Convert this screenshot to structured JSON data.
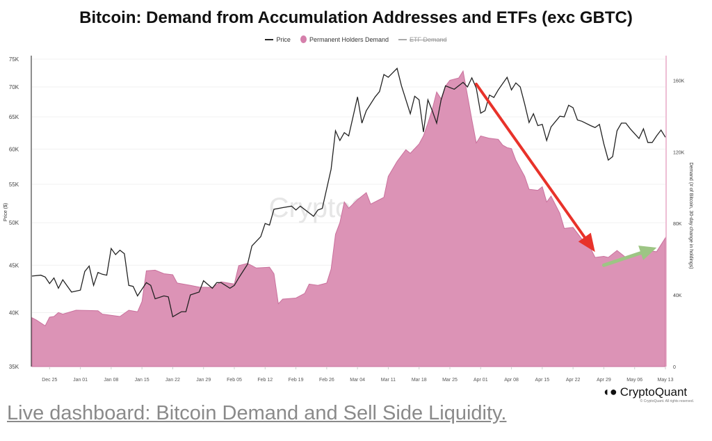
{
  "chart_data": {
    "type": "line+area",
    "title": "Bitcoin: Demand from Accumulation Addresses and ETFs (exc GBTC)",
    "legend": {
      "placement": "top-center",
      "items": [
        {
          "name": "Price",
          "marker": "line",
          "color": "#222222",
          "hidden": false
        },
        {
          "name": "Permanent Holders Demand",
          "marker": "dot",
          "color": "#d57fab",
          "hidden": false
        },
        {
          "name": "ETF Demand",
          "marker": "line",
          "color": "#aaaaaa",
          "hidden": true
        }
      ]
    },
    "x": {
      "type": "date",
      "range": [
        "2023-12-21",
        "2024-05-13"
      ],
      "tick_labels": [
        "Dec 25",
        "Jan 01",
        "Jan 08",
        "Jan 15",
        "Jan 22",
        "Jan 29",
        "Feb 05",
        "Feb 12",
        "Feb 19",
        "Feb 26",
        "Mar 04",
        "Mar 11",
        "Mar 18",
        "Mar 25",
        "Apr 01",
        "Apr 08",
        "Apr 15",
        "Apr 22",
        "Apr 29",
        "May 06",
        "May 13"
      ],
      "tick_dates": [
        "2023-12-25",
        "2024-01-01",
        "2024-01-08",
        "2024-01-15",
        "2024-01-22",
        "2024-01-29",
        "2024-02-05",
        "2024-02-12",
        "2024-02-19",
        "2024-02-26",
        "2024-03-04",
        "2024-03-11",
        "2024-03-18",
        "2024-03-25",
        "2024-04-01",
        "2024-04-08",
        "2024-04-15",
        "2024-04-22",
        "2024-04-29",
        "2024-05-06",
        "2024-05-13"
      ]
    },
    "y_left": {
      "label": "Price ($)",
      "scale": "log",
      "range_k": [
        35,
        75
      ],
      "ticks_k": [
        35,
        40,
        45,
        50,
        55,
        60,
        65,
        70,
        75
      ],
      "tick_labels": [
        "35K",
        "40K",
        "45K",
        "50K",
        "55K",
        "60K",
        "65K",
        "70K",
        "75K"
      ],
      "grid": true
    },
    "y_right": {
      "label": "Demand (# of Bitcoin, 30-day change in holdings)",
      "scale": "linear",
      "range_k": [
        0,
        173
      ],
      "ticks_k": [
        0,
        40,
        80,
        120,
        160
      ],
      "tick_labels": [
        "0",
        "40K",
        "80K",
        "120K",
        "160K"
      ]
    },
    "series": [
      {
        "name": "Price",
        "axis": "left",
        "unit": "K USD",
        "color": "#222222",
        "points": [
          [
            "2023-12-21",
            43.8
          ],
          [
            "2023-12-23",
            43.9
          ],
          [
            "2023-12-24",
            43.7
          ],
          [
            "2023-12-25",
            43.0
          ],
          [
            "2023-12-26",
            43.6
          ],
          [
            "2023-12-27",
            42.5
          ],
          [
            "2023-12-28",
            43.4
          ],
          [
            "2023-12-30",
            42.1
          ],
          [
            "2024-01-01",
            42.3
          ],
          [
            "2024-01-02",
            44.3
          ],
          [
            "2024-01-03",
            44.9
          ],
          [
            "2024-01-04",
            42.8
          ],
          [
            "2024-01-05",
            44.2
          ],
          [
            "2024-01-06",
            44.0
          ],
          [
            "2024-01-07",
            43.9
          ],
          [
            "2024-01-08",
            46.9
          ],
          [
            "2024-01-09",
            46.2
          ],
          [
            "2024-01-10",
            46.7
          ],
          [
            "2024-01-11",
            46.3
          ],
          [
            "2024-01-12",
            42.8
          ],
          [
            "2024-01-13",
            42.7
          ],
          [
            "2024-01-14",
            41.7
          ],
          [
            "2024-01-16",
            43.1
          ],
          [
            "2024-01-17",
            42.8
          ],
          [
            "2024-01-18",
            41.4
          ],
          [
            "2024-01-20",
            41.7
          ],
          [
            "2024-01-21",
            41.6
          ],
          [
            "2024-01-22",
            39.6
          ],
          [
            "2024-01-24",
            40.1
          ],
          [
            "2024-01-25",
            40.1
          ],
          [
            "2024-01-26",
            41.8
          ],
          [
            "2024-01-28",
            42.1
          ],
          [
            "2024-01-29",
            43.3
          ],
          [
            "2024-01-31",
            42.5
          ],
          [
            "2024-02-01",
            43.1
          ],
          [
            "2024-02-02",
            43.1
          ],
          [
            "2024-02-04",
            42.5
          ],
          [
            "2024-02-05",
            42.8
          ],
          [
            "2024-02-06",
            43.6
          ],
          [
            "2024-02-08",
            45.1
          ],
          [
            "2024-02-09",
            47.2
          ],
          [
            "2024-02-11",
            48.3
          ],
          [
            "2024-02-12",
            49.9
          ],
          [
            "2024-02-13",
            49.7
          ],
          [
            "2024-02-14",
            51.7
          ],
          [
            "2024-02-16",
            51.9
          ],
          [
            "2024-02-18",
            52.1
          ],
          [
            "2024-02-19",
            51.6
          ],
          [
            "2024-02-20",
            52.1
          ],
          [
            "2024-02-23",
            50.8
          ],
          [
            "2024-02-24",
            51.6
          ],
          [
            "2024-02-25",
            51.8
          ],
          [
            "2024-02-27",
            57.1
          ],
          [
            "2024-02-28",
            62.8
          ],
          [
            "2024-02-29",
            61.3
          ],
          [
            "2024-03-01",
            62.5
          ],
          [
            "2024-03-02",
            62.0
          ],
          [
            "2024-03-04",
            68.3
          ],
          [
            "2024-03-05",
            64.0
          ],
          [
            "2024-03-06",
            66.0
          ],
          [
            "2024-03-08",
            68.3
          ],
          [
            "2024-03-09",
            69.2
          ],
          [
            "2024-03-10",
            72.2
          ],
          [
            "2024-03-11",
            71.7
          ],
          [
            "2024-03-13",
            73.3
          ],
          [
            "2024-03-14",
            70.2
          ],
          [
            "2024-03-16",
            65.5
          ],
          [
            "2024-03-17",
            68.4
          ],
          [
            "2024-03-18",
            67.8
          ],
          [
            "2024-03-19",
            62.6
          ],
          [
            "2024-03-20",
            67.8
          ],
          [
            "2024-03-21",
            66.0
          ],
          [
            "2024-03-22",
            64.0
          ],
          [
            "2024-03-23",
            67.8
          ],
          [
            "2024-03-24",
            70.2
          ],
          [
            "2024-03-26",
            69.6
          ],
          [
            "2024-03-28",
            70.8
          ],
          [
            "2024-03-29",
            70.0
          ],
          [
            "2024-03-30",
            71.6
          ],
          [
            "2024-03-31",
            69.8
          ],
          [
            "2024-04-01",
            65.6
          ],
          [
            "2024-04-02",
            66.0
          ],
          [
            "2024-04-03",
            68.6
          ],
          [
            "2024-04-04",
            68.2
          ],
          [
            "2024-04-05",
            69.5
          ],
          [
            "2024-04-07",
            71.7
          ],
          [
            "2024-04-08",
            69.5
          ],
          [
            "2024-04-09",
            70.7
          ],
          [
            "2024-04-10",
            70.0
          ],
          [
            "2024-04-11",
            67.1
          ],
          [
            "2024-04-12",
            64.1
          ],
          [
            "2024-04-13",
            65.5
          ],
          [
            "2024-04-14",
            63.6
          ],
          [
            "2024-04-15",
            63.8
          ],
          [
            "2024-04-16",
            61.3
          ],
          [
            "2024-04-17",
            63.4
          ],
          [
            "2024-04-19",
            65.1
          ],
          [
            "2024-04-20",
            65.0
          ],
          [
            "2024-04-21",
            66.9
          ],
          [
            "2024-04-22",
            66.5
          ],
          [
            "2024-04-23",
            64.5
          ],
          [
            "2024-04-24",
            64.3
          ],
          [
            "2024-04-26",
            63.6
          ],
          [
            "2024-04-27",
            63.3
          ],
          [
            "2024-04-28",
            63.8
          ],
          [
            "2024-04-29",
            60.8
          ],
          [
            "2024-04-30",
            58.4
          ],
          [
            "2024-05-01",
            58.9
          ],
          [
            "2024-05-02",
            62.8
          ],
          [
            "2024-05-03",
            64.0
          ],
          [
            "2024-05-04",
            64.0
          ],
          [
            "2024-05-05",
            63.1
          ],
          [
            "2024-05-07",
            61.6
          ],
          [
            "2024-05-08",
            63.1
          ],
          [
            "2024-05-09",
            61.0
          ],
          [
            "2024-05-10",
            61.0
          ],
          [
            "2024-05-11",
            62.0
          ],
          [
            "2024-05-12",
            62.9
          ],
          [
            "2024-05-13",
            61.8
          ]
        ]
      },
      {
        "name": "Permanent Holders Demand",
        "axis": "right",
        "unit": "K BTC",
        "color": "#d57fab",
        "points": [
          [
            "2023-12-21",
            27.3
          ],
          [
            "2023-12-22",
            26.0
          ],
          [
            "2023-12-24",
            22.8
          ],
          [
            "2023-12-25",
            27.6
          ],
          [
            "2023-12-26",
            28.0
          ],
          [
            "2023-12-27",
            30.2
          ],
          [
            "2023-12-28",
            29.3
          ],
          [
            "2023-12-31",
            31.5
          ],
          [
            "2024-01-05",
            31.2
          ],
          [
            "2024-01-06",
            29.3
          ],
          [
            "2024-01-10",
            28.0
          ],
          [
            "2024-01-12",
            31.5
          ],
          [
            "2024-01-14",
            30.6
          ],
          [
            "2024-01-15",
            36.4
          ],
          [
            "2024-01-16",
            53.5
          ],
          [
            "2024-01-18",
            53.9
          ],
          [
            "2024-01-20",
            51.9
          ],
          [
            "2024-01-22",
            51.3
          ],
          [
            "2024-01-23",
            46.7
          ],
          [
            "2024-01-26",
            45.4
          ],
          [
            "2024-01-28",
            44.4
          ],
          [
            "2024-01-31",
            44.2
          ],
          [
            "2024-02-02",
            47.4
          ],
          [
            "2024-02-05",
            46.1
          ],
          [
            "2024-02-06",
            56.4
          ],
          [
            "2024-02-08",
            57.7
          ],
          [
            "2024-02-10",
            55.1
          ],
          [
            "2024-02-13",
            55.5
          ],
          [
            "2024-02-14",
            51.9
          ],
          [
            "2024-02-15",
            35.1
          ],
          [
            "2024-02-16",
            37.7
          ],
          [
            "2024-02-19",
            38.3
          ],
          [
            "2024-02-21",
            40.9
          ],
          [
            "2024-02-22",
            46.1
          ],
          [
            "2024-02-24",
            45.4
          ],
          [
            "2024-02-26",
            46.7
          ],
          [
            "2024-02-27",
            54.5
          ],
          [
            "2024-02-28",
            73.9
          ],
          [
            "2024-02-29",
            80.4
          ],
          [
            "2024-03-01",
            92.0
          ],
          [
            "2024-03-02",
            88.5
          ],
          [
            "2024-03-04",
            93.3
          ],
          [
            "2024-03-06",
            97.2
          ],
          [
            "2024-03-07",
            90.8
          ],
          [
            "2024-03-09",
            93.3
          ],
          [
            "2024-03-10",
            94.6
          ],
          [
            "2024-03-11",
            106.3
          ],
          [
            "2024-03-13",
            114.7
          ],
          [
            "2024-03-15",
            121.2
          ],
          [
            "2024-03-16",
            119.2
          ],
          [
            "2024-03-18",
            124.4
          ],
          [
            "2024-03-19",
            128.9
          ],
          [
            "2024-03-20",
            136.0
          ],
          [
            "2024-03-21",
            143.8
          ],
          [
            "2024-03-22",
            153.5
          ],
          [
            "2024-03-23",
            149.6
          ],
          [
            "2024-03-24",
            156.8
          ],
          [
            "2024-03-25",
            160.0
          ],
          [
            "2024-03-27",
            161.3
          ],
          [
            "2024-03-28",
            165.2
          ],
          [
            "2024-03-29",
            151.6
          ],
          [
            "2024-03-30",
            138.0
          ],
          [
            "2024-03-31",
            125.0
          ],
          [
            "2024-04-01",
            128.9
          ],
          [
            "2024-04-03",
            127.6
          ],
          [
            "2024-04-05",
            127.0
          ],
          [
            "2024-04-06",
            123.8
          ],
          [
            "2024-04-07",
            122.4
          ],
          [
            "2024-04-08",
            121.8
          ],
          [
            "2024-04-09",
            115.3
          ],
          [
            "2024-04-11",
            106.3
          ],
          [
            "2024-04-12",
            99.1
          ],
          [
            "2024-04-14",
            98.5
          ],
          [
            "2024-04-15",
            100.5
          ],
          [
            "2024-04-16",
            92.0
          ],
          [
            "2024-04-17",
            95.3
          ],
          [
            "2024-04-19",
            85.6
          ],
          [
            "2024-04-20",
            77.2
          ],
          [
            "2024-04-22",
            77.8
          ],
          [
            "2024-04-24",
            71.3
          ],
          [
            "2024-04-26",
            66.1
          ],
          [
            "2024-04-27",
            61.0
          ],
          [
            "2024-04-29",
            61.6
          ],
          [
            "2024-04-30",
            61.0
          ],
          [
            "2024-05-02",
            64.9
          ],
          [
            "2024-05-04",
            61.0
          ],
          [
            "2024-05-06",
            61.6
          ],
          [
            "2024-05-08",
            63.6
          ],
          [
            "2024-05-09",
            64.9
          ],
          [
            "2024-05-11",
            64.2
          ],
          [
            "2024-05-13",
            72.0
          ]
        ]
      }
    ],
    "annotations": [
      {
        "type": "arrow",
        "color": "#e8322a",
        "from": [
          "2024-03-31",
          70.5
        ],
        "to": [
          "2024-04-27",
          46.5
        ],
        "axis": "left"
      },
      {
        "type": "arrow",
        "color": "#9dc584",
        "from": [
          "2024-04-29",
          45.0
        ],
        "to": [
          "2024-05-11",
          47.0
        ],
        "axis": "left"
      }
    ],
    "watermark": "CryptoQuant"
  },
  "branding": {
    "logo_text": "CryptoQuant",
    "copyright": "© CryptoQuant. All rights reserved."
  },
  "caption_link": "Live dashboard: Bitcoin Demand and Sell Side Liquidity."
}
